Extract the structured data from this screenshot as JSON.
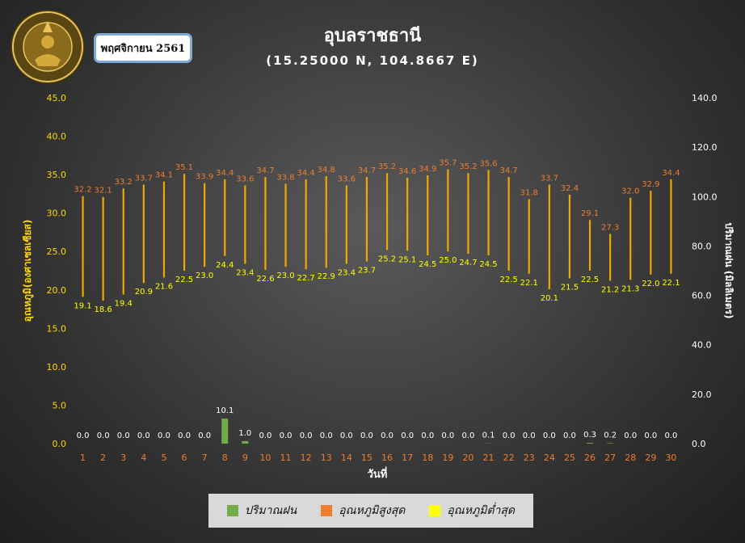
{
  "header": {
    "title": "อุบลราชธานี",
    "subtitle": "(15.25000 N, 104.8667 E)",
    "month_label": "พฤศจิกายน 2561"
  },
  "colors": {
    "max_temp": "#ed7d31",
    "min_temp": "#ffff00",
    "rain": "#70ad47",
    "range_line": "#f0a800",
    "label_max": "#ed7d31",
    "label_min": "#ffff00",
    "axis_left": "#ffd700",
    "axis_right": "#ffffff",
    "x_ticks": "#ed7d31"
  },
  "chart_data": {
    "type": "bar",
    "xlabel": "วันที่",
    "ylabel_left": "อุณหภูมิ(องศาเซลเซียส)",
    "ylabel_right": "ปริมาณฝน (มิลลิเมตร)",
    "ylim_left": [
      0,
      45
    ],
    "ylim_right": [
      0,
      140
    ],
    "yticks_left": [
      "0.0",
      "5.0",
      "10.0",
      "15.0",
      "20.0",
      "25.0",
      "30.0",
      "35.0",
      "40.0",
      "45.0"
    ],
    "yticks_right": [
      "0.0",
      "20.0",
      "40.0",
      "60.0",
      "80.0",
      "100.0",
      "120.0",
      "140.0"
    ],
    "categories": [
      "1",
      "2",
      "3",
      "4",
      "5",
      "6",
      "7",
      "8",
      "9",
      "10",
      "11",
      "12",
      "13",
      "14",
      "15",
      "16",
      "17",
      "18",
      "19",
      "20",
      "21",
      "22",
      "23",
      "24",
      "25",
      "26",
      "27",
      "28",
      "29",
      "30"
    ],
    "legend_position": "bottom",
    "series": [
      {
        "name": "ปริมาณฝน",
        "axis": "right",
        "values": [
          0.0,
          0.0,
          0.0,
          0.0,
          0.0,
          0.0,
          0.0,
          10.1,
          1.0,
          0.0,
          0.0,
          0.0,
          0.0,
          0.0,
          0.0,
          0.0,
          0.0,
          0.0,
          0.0,
          0.0,
          0.1,
          0.0,
          0.0,
          0.0,
          0.0,
          0.3,
          0.2,
          0.0,
          0.0,
          0.0
        ],
        "labels": [
          "0.0",
          "0.0",
          "0.0",
          "0.0",
          "0.0",
          "0.0",
          "0.0",
          "10.1",
          "1.0",
          "0.0",
          "0.0",
          "0.0",
          "0.0",
          "0.0",
          "0.0",
          "0.0",
          "0.0",
          "0.0",
          "0.0",
          "0.0",
          "0.1",
          "0.0",
          "0.0",
          "0.0",
          "0.0",
          "0.3",
          "0.2",
          "0.0",
          "0.0",
          "0.0"
        ]
      },
      {
        "name": "อุณหภูมิสูงสุด",
        "axis": "left",
        "values": [
          32.2,
          32.1,
          33.2,
          33.7,
          34.1,
          35.1,
          33.9,
          34.4,
          33.6,
          34.7,
          33.8,
          34.4,
          34.8,
          33.6,
          34.7,
          35.2,
          34.6,
          34.9,
          35.7,
          35.2,
          35.6,
          34.7,
          31.8,
          33.7,
          32.4,
          29.1,
          27.3,
          32.0,
          32.9,
          34.4
        ],
        "labels": [
          "32.2",
          "32.1",
          "33.2",
          "33.7",
          "34.1",
          "35.1",
          "33.9",
          "34.4",
          "33.6",
          "34.7",
          "33.8",
          "34.4",
          "34.8",
          "33.6",
          "34.7",
          "35.2",
          "34.6",
          "34.9",
          "35.7",
          "35.2",
          "35.6",
          "34.7",
          "31.8",
          "33.7",
          "32.4",
          "29.1",
          "27.3",
          "32.0",
          "32.9",
          "34.4"
        ]
      },
      {
        "name": "อุณหภูมิต่ำสุด",
        "axis": "left",
        "values": [
          19.1,
          18.6,
          19.4,
          20.9,
          21.6,
          22.5,
          23.0,
          24.4,
          23.4,
          22.6,
          23.0,
          22.7,
          22.9,
          23.4,
          23.7,
          25.2,
          25.1,
          24.5,
          25.0,
          24.7,
          24.5,
          22.5,
          22.1,
          20.1,
          21.5,
          22.5,
          21.2,
          21.3,
          22.0,
          22.1
        ],
        "labels": [
          "19.1",
          "18.6",
          "19.4",
          "20.9",
          "21.6",
          "22.5",
          "23.0",
          "24.4",
          "23.4",
          "22.6",
          "23.0",
          "22.7",
          "22.9",
          "23.4",
          "23.7",
          "25.2",
          "25.1",
          "24.5",
          "25.0",
          "24.7",
          "24.5",
          "22.5",
          "22.1",
          "20.1",
          "21.5",
          "22.5",
          "21.2",
          "21.3",
          "22.0",
          "22.1"
        ]
      }
    ]
  }
}
